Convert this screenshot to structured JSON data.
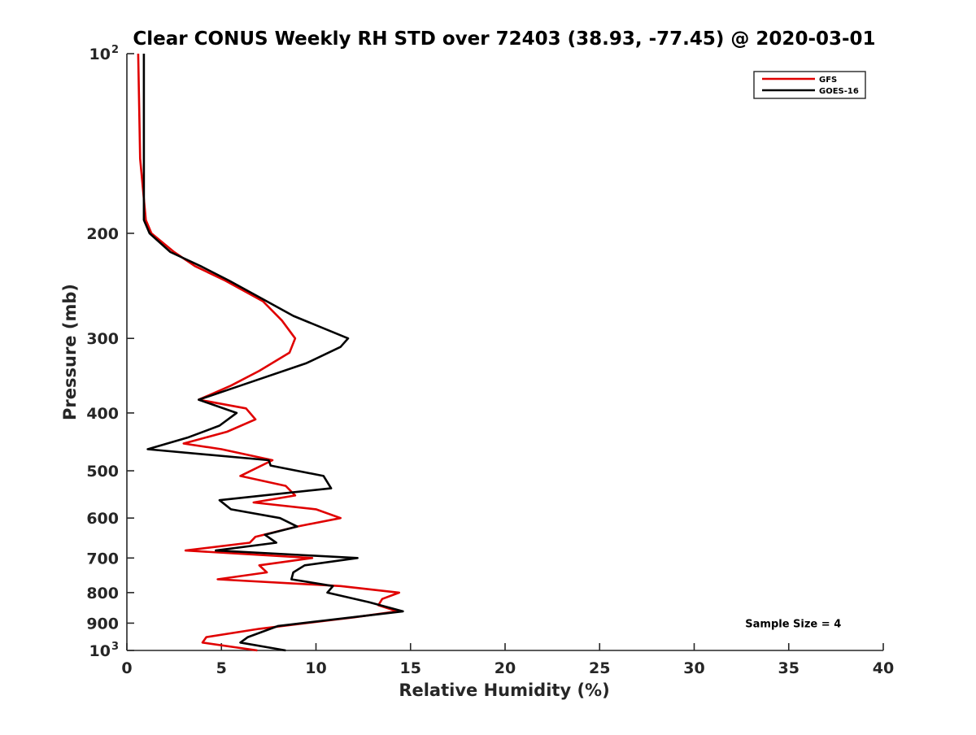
{
  "chart_data": {
    "type": "line",
    "title": "Clear CONUS Weekly RH STD over 72403 (38.93, -77.45) @ 2020-03-01",
    "xlabel": "Relative Humidity (%)",
    "ylabel": "Pressure (mb)",
    "xlim": [
      0,
      40
    ],
    "ylim": [
      1000,
      100
    ],
    "y_scale": "log",
    "y_reversed": true,
    "grid": false,
    "legend_position": "top-right",
    "x_ticks": [
      0,
      5,
      10,
      15,
      20,
      25,
      30,
      35,
      40
    ],
    "x_tick_labels": [
      "0",
      "5",
      "10",
      "15",
      "20",
      "25",
      "30",
      "35",
      "40"
    ],
    "y_ticks": [
      {
        "value": 100,
        "label": "10",
        "sup": "2"
      },
      {
        "value": 200,
        "label": "200",
        "sup": ""
      },
      {
        "value": 300,
        "label": "300",
        "sup": ""
      },
      {
        "value": 400,
        "label": "400",
        "sup": ""
      },
      {
        "value": 500,
        "label": "500",
        "sup": ""
      },
      {
        "value": 600,
        "label": "600",
        "sup": ""
      },
      {
        "value": 700,
        "label": "700",
        "sup": ""
      },
      {
        "value": 800,
        "label": "800",
        "sup": ""
      },
      {
        "value": 900,
        "label": "900",
        "sup": ""
      },
      {
        "value": 1000,
        "label": "10",
        "sup": "3"
      }
    ],
    "series": [
      {
        "name": "GFS",
        "color": "#e00000",
        "points": [
          [
            0.6,
            100
          ],
          [
            0.7,
            150
          ],
          [
            1.0,
            190
          ],
          [
            1.3,
            200
          ],
          [
            2.5,
            215
          ],
          [
            3.6,
            227
          ],
          [
            5.2,
            240
          ],
          [
            7.2,
            260
          ],
          [
            8.2,
            280
          ],
          [
            8.9,
            300
          ],
          [
            8.6,
            317
          ],
          [
            7.0,
            340
          ],
          [
            5.5,
            360
          ],
          [
            3.8,
            380
          ],
          [
            6.3,
            393
          ],
          [
            6.8,
            410
          ],
          [
            5.3,
            430
          ],
          [
            3.0,
            450
          ],
          [
            5.0,
            460
          ],
          [
            7.7,
            480
          ],
          [
            6.0,
            510
          ],
          [
            8.4,
            530
          ],
          [
            8.9,
            550
          ],
          [
            6.7,
            565
          ],
          [
            10.0,
            580
          ],
          [
            11.3,
            600
          ],
          [
            9.0,
            620
          ],
          [
            6.8,
            645
          ],
          [
            6.5,
            660
          ],
          [
            3.1,
            680
          ],
          [
            9.8,
            700
          ],
          [
            7.0,
            720
          ],
          [
            7.4,
            740
          ],
          [
            4.8,
            760
          ],
          [
            11.3,
            780
          ],
          [
            14.4,
            800
          ],
          [
            13.5,
            820
          ],
          [
            13.3,
            840
          ],
          [
            14.3,
            860
          ],
          [
            12.0,
            880
          ],
          [
            7.0,
            920
          ],
          [
            4.2,
            950
          ],
          [
            4.0,
            970
          ],
          [
            6.9,
            1000
          ]
        ]
      },
      {
        "name": "GOES-16",
        "color": "#000000",
        "points": [
          [
            0.9,
            100
          ],
          [
            0.9,
            150
          ],
          [
            0.9,
            190
          ],
          [
            1.2,
            200
          ],
          [
            2.3,
            215
          ],
          [
            3.9,
            227
          ],
          [
            5.4,
            240
          ],
          [
            7.4,
            260
          ],
          [
            8.8,
            275
          ],
          [
            11.7,
            300
          ],
          [
            11.3,
            310
          ],
          [
            9.5,
            330
          ],
          [
            6.0,
            360
          ],
          [
            3.8,
            380
          ],
          [
            5.8,
            400
          ],
          [
            4.9,
            420
          ],
          [
            3.2,
            440
          ],
          [
            1.1,
            460
          ],
          [
            7.5,
            480
          ],
          [
            7.6,
            490
          ],
          [
            10.4,
            510
          ],
          [
            10.8,
            535
          ],
          [
            7.2,
            550
          ],
          [
            4.9,
            560
          ],
          [
            5.5,
            580
          ],
          [
            8.1,
            600
          ],
          [
            9.0,
            620
          ],
          [
            7.3,
            640
          ],
          [
            7.9,
            660
          ],
          [
            4.7,
            680
          ],
          [
            12.2,
            700
          ],
          [
            9.4,
            720
          ],
          [
            8.8,
            740
          ],
          [
            8.7,
            760
          ],
          [
            10.9,
            780
          ],
          [
            10.6,
            800
          ],
          [
            12.8,
            830
          ],
          [
            14.6,
            860
          ],
          [
            8.0,
            910
          ],
          [
            6.4,
            950
          ],
          [
            6.0,
            970
          ],
          [
            8.4,
            1000
          ]
        ]
      }
    ],
    "annotations": [
      {
        "text": "Sample Size = 4",
        "x": 32.7,
        "y": 900
      }
    ]
  }
}
